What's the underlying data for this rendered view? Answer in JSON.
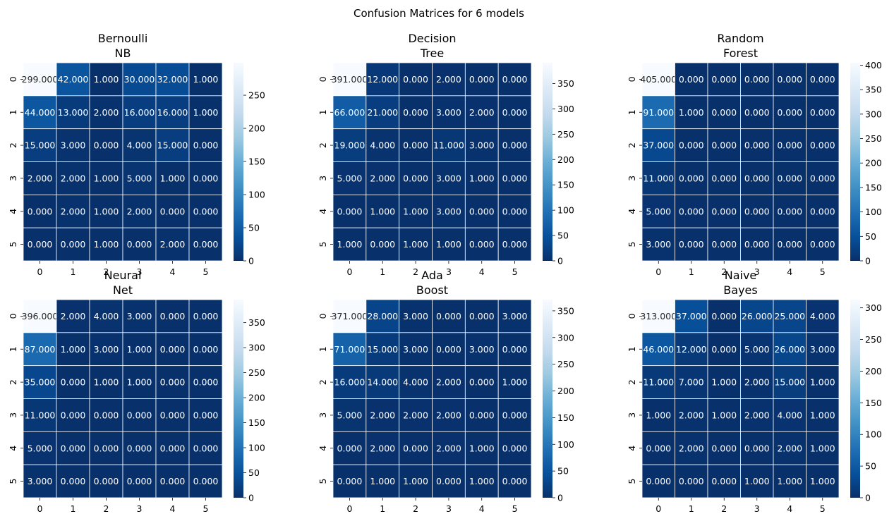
{
  "figure": {
    "title": "Confusion Matrices for 6 models"
  },
  "colorscale": {
    "name": "Blues_r",
    "stops": [
      "#08306b",
      "#08519c",
      "#2171b5",
      "#4292c6",
      "#6baed6",
      "#9ecae1",
      "#c6dbef",
      "#deebf7",
      "#f7fbff"
    ]
  },
  "chart_data": [
    {
      "type": "heatmap",
      "title": "Bernoulli\nNB",
      "x_categories": [
        "0",
        "1",
        "2",
        "3",
        "4",
        "5"
      ],
      "y_categories": [
        "0",
        "1",
        "2",
        "3",
        "4",
        "5"
      ],
      "values": [
        [
          299,
          42,
          1,
          30,
          32,
          1
        ],
        [
          44,
          13,
          2,
          16,
          16,
          1
        ],
        [
          15,
          3,
          0,
          4,
          15,
          0
        ],
        [
          2,
          2,
          1,
          5,
          1,
          0
        ],
        [
          0,
          2,
          1,
          2,
          0,
          0
        ],
        [
          0,
          0,
          1,
          0,
          2,
          0
        ]
      ],
      "cell_labels": [
        [
          "299.000",
          "42.000",
          "1.000",
          "30.000",
          "32.000",
          "1.000"
        ],
        [
          "44.000",
          "13.000",
          "2.000",
          "16.000",
          "16.000",
          "1.000"
        ],
        [
          "15.000",
          "3.000",
          "0.000",
          "4.000",
          "15.000",
          "0.000"
        ],
        [
          "2.000",
          "2.000",
          "1.000",
          "5.000",
          "1.000",
          "0.000"
        ],
        [
          "0.000",
          "2.000",
          "1.000",
          "2.000",
          "0.000",
          "0.000"
        ],
        [
          "0.000",
          "0.000",
          "1.000",
          "0.000",
          "2.000",
          "0.000"
        ]
      ],
      "vmin": 0,
      "vmax": 299,
      "colorbar_ticks": [
        0,
        50,
        100,
        150,
        200,
        250
      ],
      "colorbar_tick_labels": [
        "0",
        "50",
        "100",
        "150",
        "200",
        "250"
      ]
    },
    {
      "type": "heatmap",
      "title": "Decision\nTree",
      "x_categories": [
        "0",
        "1",
        "2",
        "3",
        "4",
        "5"
      ],
      "y_categories": [
        "0",
        "1",
        "2",
        "3",
        "4",
        "5"
      ],
      "values": [
        [
          391,
          12,
          0,
          2,
          0,
          0
        ],
        [
          66,
          21,
          0,
          3,
          2,
          0
        ],
        [
          19,
          4,
          0,
          11,
          3,
          0
        ],
        [
          5,
          2,
          0,
          3,
          1,
          0
        ],
        [
          0,
          1,
          1,
          3,
          0,
          0
        ],
        [
          1,
          0,
          1,
          1,
          0,
          0
        ]
      ],
      "cell_labels": [
        [
          "391.000",
          "12.000",
          "0.000",
          "2.000",
          "0.000",
          "0.000"
        ],
        [
          "66.000",
          "21.000",
          "0.000",
          "3.000",
          "2.000",
          "0.000"
        ],
        [
          "19.000",
          "4.000",
          "0.000",
          "11.000",
          "3.000",
          "0.000"
        ],
        [
          "5.000",
          "2.000",
          "0.000",
          "3.000",
          "1.000",
          "0.000"
        ],
        [
          "0.000",
          "1.000",
          "1.000",
          "3.000",
          "0.000",
          "0.000"
        ],
        [
          "1.000",
          "0.000",
          "1.000",
          "1.000",
          "0.000",
          "0.000"
        ]
      ],
      "vmin": 0,
      "vmax": 391,
      "colorbar_ticks": [
        0,
        50,
        100,
        150,
        200,
        250,
        300,
        350
      ],
      "colorbar_tick_labels": [
        "0",
        "50",
        "100",
        "150",
        "200",
        "250",
        "300",
        "350"
      ]
    },
    {
      "type": "heatmap",
      "title": "Random\nForest",
      "x_categories": [
        "0",
        "1",
        "2",
        "3",
        "4",
        "5"
      ],
      "y_categories": [
        "0",
        "1",
        "2",
        "3",
        "4",
        "5"
      ],
      "values": [
        [
          405,
          0,
          0,
          0,
          0,
          0
        ],
        [
          91,
          1,
          0,
          0,
          0,
          0
        ],
        [
          37,
          0,
          0,
          0,
          0,
          0
        ],
        [
          11,
          0,
          0,
          0,
          0,
          0
        ],
        [
          5,
          0,
          0,
          0,
          0,
          0
        ],
        [
          3,
          0,
          0,
          0,
          0,
          0
        ]
      ],
      "cell_labels": [
        [
          "405.000",
          "0.000",
          "0.000",
          "0.000",
          "0.000",
          "0.000"
        ],
        [
          "91.000",
          "1.000",
          "0.000",
          "0.000",
          "0.000",
          "0.000"
        ],
        [
          "37.000",
          "0.000",
          "0.000",
          "0.000",
          "0.000",
          "0.000"
        ],
        [
          "11.000",
          "0.000",
          "0.000",
          "0.000",
          "0.000",
          "0.000"
        ],
        [
          "5.000",
          "0.000",
          "0.000",
          "0.000",
          "0.000",
          "0.000"
        ],
        [
          "3.000",
          "0.000",
          "0.000",
          "0.000",
          "0.000",
          "0.000"
        ]
      ],
      "vmin": 0,
      "vmax": 405,
      "colorbar_ticks": [
        0,
        50,
        100,
        150,
        200,
        250,
        300,
        350,
        400
      ],
      "colorbar_tick_labels": [
        "0",
        "50",
        "100",
        "150",
        "200",
        "250",
        "300",
        "350",
        "400"
      ]
    },
    {
      "type": "heatmap",
      "title": "Neural\nNet",
      "x_categories": [
        "0",
        "1",
        "2",
        "3",
        "4",
        "5"
      ],
      "y_categories": [
        "0",
        "1",
        "2",
        "3",
        "4",
        "5"
      ],
      "values": [
        [
          396,
          2,
          4,
          3,
          0,
          0
        ],
        [
          87,
          1,
          3,
          1,
          0,
          0
        ],
        [
          35,
          0,
          1,
          1,
          0,
          0
        ],
        [
          11,
          0,
          0,
          0,
          0,
          0
        ],
        [
          5,
          0,
          0,
          0,
          0,
          0
        ],
        [
          3,
          0,
          0,
          0,
          0,
          0
        ]
      ],
      "cell_labels": [
        [
          "396.000",
          "2.000",
          "4.000",
          "3.000",
          "0.000",
          "0.000"
        ],
        [
          "87.000",
          "1.000",
          "3.000",
          "1.000",
          "0.000",
          "0.000"
        ],
        [
          "35.000",
          "0.000",
          "1.000",
          "1.000",
          "0.000",
          "0.000"
        ],
        [
          "11.000",
          "0.000",
          "0.000",
          "0.000",
          "0.000",
          "0.000"
        ],
        [
          "5.000",
          "0.000",
          "0.000",
          "0.000",
          "0.000",
          "0.000"
        ],
        [
          "3.000",
          "0.000",
          "0.000",
          "0.000",
          "0.000",
          "0.000"
        ]
      ],
      "vmin": 0,
      "vmax": 396,
      "colorbar_ticks": [
        0,
        50,
        100,
        150,
        200,
        250,
        300,
        350
      ],
      "colorbar_tick_labels": [
        "0",
        "50",
        "100",
        "150",
        "200",
        "250",
        "300",
        "350"
      ]
    },
    {
      "type": "heatmap",
      "title": "Ada\nBoost",
      "x_categories": [
        "0",
        "1",
        "2",
        "3",
        "4",
        "5"
      ],
      "y_categories": [
        "0",
        "1",
        "2",
        "3",
        "4",
        "5"
      ],
      "values": [
        [
          371,
          28,
          3,
          0,
          0,
          3
        ],
        [
          71,
          15,
          3,
          0,
          3,
          0
        ],
        [
          16,
          14,
          4,
          2,
          0,
          1
        ],
        [
          5,
          2,
          2,
          2,
          0,
          0
        ],
        [
          0,
          2,
          0,
          2,
          1,
          0
        ],
        [
          0,
          1,
          1,
          0,
          1,
          0
        ]
      ],
      "cell_labels": [
        [
          "371.000",
          "28.000",
          "3.000",
          "0.000",
          "0.000",
          "3.000"
        ],
        [
          "71.000",
          "15.000",
          "3.000",
          "0.000",
          "3.000",
          "0.000"
        ],
        [
          "16.000",
          "14.000",
          "4.000",
          "2.000",
          "0.000",
          "1.000"
        ],
        [
          "5.000",
          "2.000",
          "2.000",
          "2.000",
          "0.000",
          "0.000"
        ],
        [
          "0.000",
          "2.000",
          "0.000",
          "2.000",
          "1.000",
          "0.000"
        ],
        [
          "0.000",
          "1.000",
          "1.000",
          "0.000",
          "1.000",
          "0.000"
        ]
      ],
      "vmin": 0,
      "vmax": 371,
      "colorbar_ticks": [
        0,
        50,
        100,
        150,
        200,
        250,
        300,
        350
      ],
      "colorbar_tick_labels": [
        "0",
        "50",
        "100",
        "150",
        "200",
        "250",
        "300",
        "350"
      ]
    },
    {
      "type": "heatmap",
      "title": "Naive\nBayes",
      "x_categories": [
        "0",
        "1",
        "2",
        "3",
        "4",
        "5"
      ],
      "y_categories": [
        "0",
        "1",
        "2",
        "3",
        "4",
        "5"
      ],
      "values": [
        [
          313,
          37,
          0,
          26,
          25,
          4
        ],
        [
          46,
          12,
          0,
          5,
          26,
          3
        ],
        [
          11,
          7,
          1,
          2,
          15,
          1
        ],
        [
          1,
          2,
          1,
          2,
          4,
          1
        ],
        [
          0,
          2,
          0,
          0,
          2,
          1
        ],
        [
          0,
          0,
          0,
          1,
          1,
          1
        ]
      ],
      "cell_labels": [
        [
          "313.000",
          "37.000",
          "0.000",
          "26.000",
          "25.000",
          "4.000"
        ],
        [
          "46.000",
          "12.000",
          "0.000",
          "5.000",
          "26.000",
          "3.000"
        ],
        [
          "11.000",
          "7.000",
          "1.000",
          "2.000",
          "15.000",
          "1.000"
        ],
        [
          "1.000",
          "2.000",
          "1.000",
          "2.000",
          "4.000",
          "1.000"
        ],
        [
          "0.000",
          "2.000",
          "0.000",
          "0.000",
          "2.000",
          "1.000"
        ],
        [
          "0.000",
          "0.000",
          "0.000",
          "1.000",
          "1.000",
          "1.000"
        ]
      ],
      "vmin": 0,
      "vmax": 313,
      "colorbar_ticks": [
        0,
        50,
        100,
        150,
        200,
        250,
        300
      ],
      "colorbar_tick_labels": [
        "0",
        "50",
        "100",
        "150",
        "200",
        "250",
        "300"
      ]
    }
  ]
}
